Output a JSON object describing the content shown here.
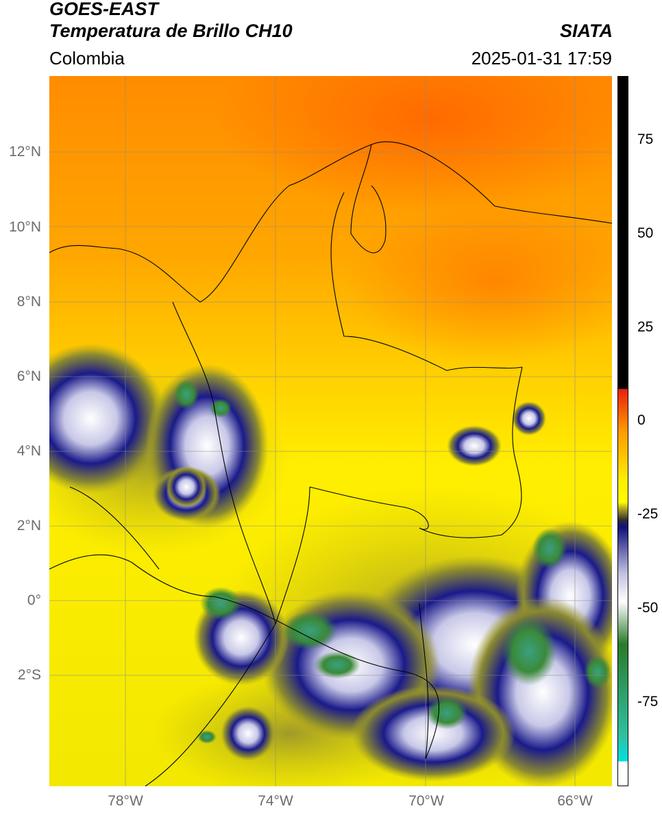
{
  "header": {
    "title_line1": "GOES-EAST",
    "title_line2": "Temperatura de Brillo CH10",
    "region": "Colombia",
    "agency": "SIATA",
    "datetime": "2025-01-31 17:59"
  },
  "axes": {
    "lat_labels": [
      "12°N",
      "10°N",
      "8°N",
      "6°N",
      "4°N",
      "2°N",
      "0°",
      "2°S"
    ],
    "lon_labels": [
      "78°W",
      "74°W",
      "70°W",
      "66°W"
    ]
  },
  "colorbar": {
    "labels": [
      "75",
      "50",
      "25",
      "0",
      "-25",
      "-50",
      "-75"
    ],
    "colors": {
      "top_black": "#000000",
      "warm_red": "#e8200c",
      "orange": "#ff9a00",
      "yellow": "#ffff00",
      "olive": "#a8a020",
      "navy": "#10107a",
      "white": "#ffffff",
      "green": "#2a7a2a",
      "teal": "#30c0a0",
      "cyan": "#00e0e0"
    }
  }
}
